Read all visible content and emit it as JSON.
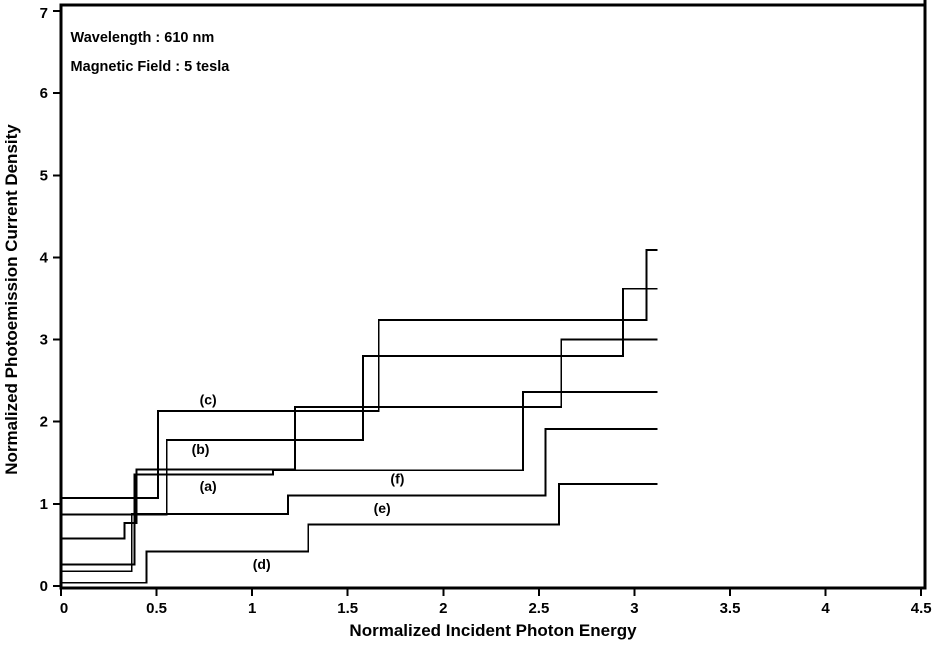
{
  "figure": {
    "background": "#ffffff",
    "line_color": "#000000"
  },
  "chart_data": {
    "type": "line",
    "subtype": "staircase-step-plot",
    "title": "",
    "xlabel": "Normalized Incident Photon Energy",
    "ylabel": "Normalized Photoemission Current Density",
    "xlim": [
      0,
      4.52
    ],
    "ylim": [
      0,
      7.07
    ],
    "grid": false,
    "legend_position": "none",
    "frame": true,
    "background": "#ffffff",
    "line_color": "#000000",
    "x_ticks": [
      0,
      0.5,
      1,
      1.5,
      2,
      2.5,
      3,
      3.5,
      4,
      4.5
    ],
    "x_tick_labels": [
      "0",
      "0.5",
      "1",
      "1.5",
      "2",
      "2.5",
      "3",
      "3.5",
      "4",
      "4.5"
    ],
    "y_ticks": [
      0,
      1,
      2,
      3,
      4,
      5,
      6,
      7
    ],
    "y_tick_labels": [
      "0",
      "1",
      "2",
      "3",
      "4",
      "5",
      "6",
      "7"
    ],
    "annotations": [
      {
        "text": "Wavelength : 610 nm",
        "x": 0.05,
        "y": 6.62
      },
      {
        "text": "Magnetic Field : 5 tesla",
        "x": 0.05,
        "y": 6.27
      }
    ],
    "series": [
      {
        "name": "(a)",
        "label_x": 0.77,
        "label_y": 1.22,
        "points": [
          [
            0,
            0.58
          ],
          [
            0.332,
            0.58
          ],
          [
            0.332,
            0.77
          ],
          [
            0.395,
            0.77
          ],
          [
            0.395,
            1.42
          ],
          [
            1.223,
            1.42
          ],
          [
            1.223,
            2.18
          ],
          [
            2.617,
            2.18
          ],
          [
            2.617,
            3.0
          ],
          [
            3.12,
            3.0
          ]
        ]
      },
      {
        "name": "(b)",
        "label_x": 0.73,
        "label_y": 1.67,
        "points": [
          [
            0,
            0.87
          ],
          [
            0.553,
            0.87
          ],
          [
            0.553,
            1.78
          ],
          [
            1.579,
            1.78
          ],
          [
            1.579,
            2.8
          ],
          [
            2.94,
            2.8
          ],
          [
            2.94,
            3.62
          ],
          [
            3.12,
            3.62
          ]
        ]
      },
      {
        "name": "(c)",
        "label_x": 0.77,
        "label_y": 2.27,
        "points": [
          [
            0,
            1.07
          ],
          [
            0.507,
            1.07
          ],
          [
            0.507,
            2.13
          ],
          [
            1.662,
            2.13
          ],
          [
            1.662,
            3.24
          ],
          [
            3.062,
            3.24
          ],
          [
            3.062,
            4.09
          ],
          [
            3.12,
            4.09
          ]
        ]
      },
      {
        "name": "(d)",
        "label_x": 1.05,
        "label_y": 0.27,
        "points": [
          [
            0,
            0.04
          ],
          [
            0.448,
            0.04
          ],
          [
            0.448,
            0.42
          ],
          [
            1.293,
            0.42
          ],
          [
            1.293,
            0.75
          ],
          [
            2.605,
            0.75
          ],
          [
            2.605,
            1.24
          ],
          [
            3.12,
            1.24
          ]
        ]
      },
      {
        "name": "(e)",
        "label_x": 1.68,
        "label_y": 0.95,
        "points": [
          [
            0,
            0.18
          ],
          [
            0.37,
            0.18
          ],
          [
            0.37,
            0.875
          ],
          [
            1.188,
            0.875
          ],
          [
            1.188,
            1.1
          ],
          [
            2.535,
            1.1
          ],
          [
            2.535,
            1.91
          ],
          [
            3.12,
            1.91
          ]
        ]
      },
      {
        "name": "(f)",
        "label_x": 1.76,
        "label_y": 1.31,
        "points": [
          [
            0,
            0.26
          ],
          [
            0.385,
            0.26
          ],
          [
            0.385,
            1.36
          ],
          [
            1.108,
            1.36
          ],
          [
            1.108,
            1.41
          ],
          [
            2.417,
            1.41
          ],
          [
            2.417,
            2.36
          ],
          [
            3.12,
            2.36
          ]
        ]
      }
    ]
  }
}
